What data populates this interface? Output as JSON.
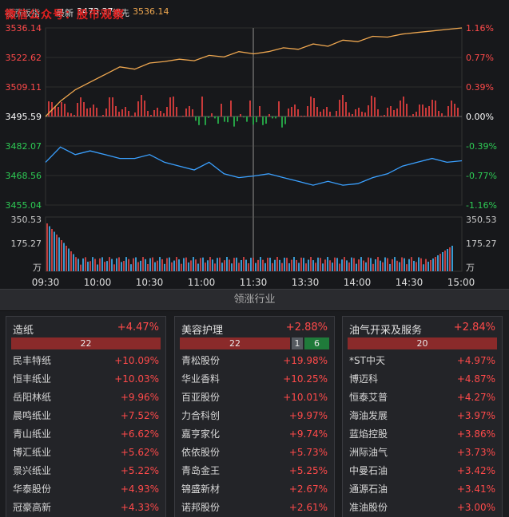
{
  "header": {
    "index_name": "领涨板指",
    "latest_label": "最新",
    "latest_value": "3473.37",
    "lead_label": "领先",
    "lead_value": "3536.14",
    "watermark": "微信公众号：股市观察"
  },
  "colors": {
    "up": "#ff4a4a",
    "down": "#2ecc55",
    "flat": "#ffffff",
    "price_line": "#f0a850",
    "lead_line": "#3aa0ff"
  },
  "chart_data": {
    "type": "line",
    "price_axis_left": [
      "3536.14",
      "3522.62",
      "3509.11",
      "3495.59",
      "3482.07",
      "3468.56",
      "3455.04"
    ],
    "pct_axis_right": [
      "1.16%",
      "0.77%",
      "0.39%",
      "0.00%",
      "-0.39%",
      "-0.77%",
      "-1.16%"
    ],
    "price_ylim": [
      3455.04,
      3536.14
    ],
    "volume_axis": [
      "350.53",
      "175.27",
      "万"
    ],
    "volume_axis_right": [
      "350.53",
      "175.27",
      "万"
    ],
    "time_ticks": [
      "09:30",
      "10:00",
      "10:30",
      "11:00",
      "11:30",
      "13:30",
      "14:00",
      "14:30",
      "15:00"
    ],
    "series": [
      {
        "values": [
          0.0,
          0.2,
          0.35,
          0.45,
          0.55,
          0.65,
          0.62,
          0.7,
          0.72,
          0.75,
          0.73,
          0.8,
          0.78,
          0.85,
          0.82,
          0.85,
          0.9,
          0.88,
          0.95,
          0.92,
          1.0,
          0.98,
          1.05,
          1.04,
          1.08,
          1.1,
          1.12,
          1.14,
          1.16
        ]
      },
      {
        "values": [
          -0.6,
          -0.4,
          -0.5,
          -0.45,
          -0.5,
          -0.55,
          -0.55,
          -0.5,
          -0.6,
          -0.65,
          -0.7,
          -0.6,
          -0.75,
          -0.8,
          -0.78,
          -0.75,
          -0.8,
          -0.85,
          -0.9,
          -0.85,
          -0.9,
          -0.88,
          -0.8,
          -0.75,
          -0.65,
          -0.6,
          -0.55,
          -0.6,
          -0.58
        ]
      }
    ]
  },
  "section_title": "领涨行业",
  "panels": [
    {
      "title": "造纸",
      "pct": "+4.47%",
      "counts": {
        "up": "22",
        "flat": "",
        "down": ""
      },
      "stocks": [
        {
          "name": "民丰特纸",
          "pct": "+10.09%"
        },
        {
          "name": "恒丰纸业",
          "pct": "+10.03%"
        },
        {
          "name": "岳阳林纸",
          "pct": "+9.96%"
        },
        {
          "name": "晨鸣纸业",
          "pct": "+7.52%"
        },
        {
          "name": "青山纸业",
          "pct": "+6.62%"
        },
        {
          "name": "博汇纸业",
          "pct": "+5.62%"
        },
        {
          "name": "景兴纸业",
          "pct": "+5.22%"
        },
        {
          "name": "华泰股份",
          "pct": "+4.93%"
        },
        {
          "name": "冠豪高新",
          "pct": "+4.33%"
        }
      ]
    },
    {
      "title": "美容护理",
      "pct": "+2.88%",
      "counts": {
        "up": "22",
        "flat": "1",
        "down": "6"
      },
      "stocks": [
        {
          "name": "青松股份",
          "pct": "+19.98%"
        },
        {
          "name": "华业香料",
          "pct": "+10.25%"
        },
        {
          "name": "百亚股份",
          "pct": "+10.01%"
        },
        {
          "name": "力合科创",
          "pct": "+9.97%"
        },
        {
          "name": "嘉亨家化",
          "pct": "+9.74%"
        },
        {
          "name": "依依股份",
          "pct": "+5.73%"
        },
        {
          "name": "青岛金王",
          "pct": "+5.25%"
        },
        {
          "name": "锦盛新材",
          "pct": "+2.67%"
        },
        {
          "name": "诺邦股份",
          "pct": "+2.61%"
        }
      ]
    },
    {
      "title": "油气开采及服务",
      "pct": "+2.84%",
      "counts": {
        "up": "20",
        "flat": "",
        "down": ""
      },
      "stocks": [
        {
          "name": "*ST中天",
          "pct": "+4.97%"
        },
        {
          "name": "博迈科",
          "pct": "+4.87%"
        },
        {
          "name": "恒泰艾普",
          "pct": "+4.27%"
        },
        {
          "name": "海油发展",
          "pct": "+3.97%"
        },
        {
          "name": "蓝焰控股",
          "pct": "+3.86%"
        },
        {
          "name": "洲际油气",
          "pct": "+3.73%"
        },
        {
          "name": "中曼石油",
          "pct": "+3.42%"
        },
        {
          "name": "通源石油",
          "pct": "+3.41%"
        },
        {
          "name": "准油股份",
          "pct": "+3.00%"
        }
      ]
    }
  ]
}
